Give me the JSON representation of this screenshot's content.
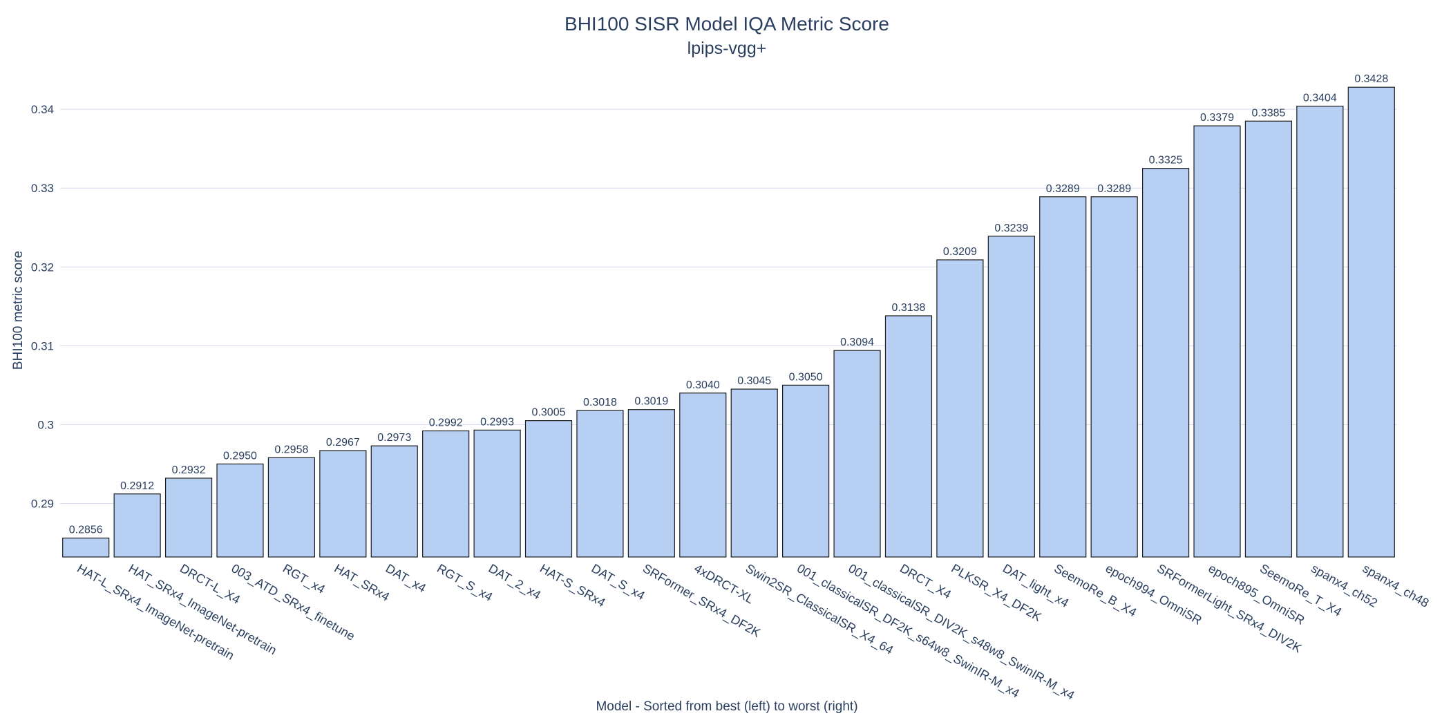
{
  "chart_data": {
    "type": "bar",
    "title": "BHI100 SISR Model IQA Metric Score",
    "subtitle": "lpips-vgg+",
    "xlabel": "Model - Sorted from best (left) to worst (right)",
    "ylabel": "BHI100 metric score",
    "ylim": [
      0.2832,
      0.3458
    ],
    "yticks": [
      0.29,
      0.3,
      0.31,
      0.32,
      0.33,
      0.34
    ],
    "ytick_labels": [
      "0.29",
      "0.3",
      "0.31",
      "0.32",
      "0.33",
      "0.34"
    ],
    "grid": true,
    "bar_color": "#b8cff4",
    "bar_edge_color": "#1a1a1a",
    "text_color": "#2a3f5f",
    "grid_color": "#d6dcef",
    "categories": [
      "HAT-L_SRx4_ImageNet-pretrain",
      "HAT_SRx4_ImageNet-pretrain",
      "DRCT-L_X4",
      "003_ATD_SRx4_finetune",
      "RGT_x4",
      "HAT_SRx4",
      "DAT_x4",
      "RGT_S_x4",
      "DAT_2_x4",
      "HAT-S_SRx4",
      "DAT_S_x4",
      "SRFormer_SRx4_DF2K",
      "4xDRCT-XL",
      "Swin2SR_ClassicalSR_X4_64",
      "001_classicalSR_DF2K_s64w8_SwinIR-M_x4",
      "001_classicalSR_DIV2K_s48w8_SwinIR-M_x4",
      "DRCT_X4",
      "PLKSR_X4_DF2K",
      "DAT_light_x4",
      "SeemoRe_B_X4",
      "epoch994_OmniSR",
      "SRFormerLight_SRx4_DIV2K",
      "epoch895_OmniSR",
      "SeemoRe_T_X4",
      "spanx4_ch52",
      "spanx4_ch48"
    ],
    "values": [
      0.2856,
      0.2912,
      0.2932,
      0.295,
      0.2958,
      0.2967,
      0.2973,
      0.2992,
      0.2993,
      0.3005,
      0.3018,
      0.3019,
      0.304,
      0.3045,
      0.305,
      0.3094,
      0.3138,
      0.3209,
      0.3239,
      0.3289,
      0.3289,
      0.3325,
      0.3379,
      0.3385,
      0.3404,
      0.3428
    ],
    "value_labels": [
      "0.2856",
      "0.2912",
      "0.2932",
      "0.2950",
      "0.2958",
      "0.2967",
      "0.2973",
      "0.2992",
      "0.2993",
      "0.3005",
      "0.3018",
      "0.3019",
      "0.3040",
      "0.3045",
      "0.3050",
      "0.3094",
      "0.3138",
      "0.3209",
      "0.3239",
      "0.3289",
      "0.3289",
      "0.3325",
      "0.3379",
      "0.3385",
      "0.3404",
      "0.3428"
    ]
  }
}
